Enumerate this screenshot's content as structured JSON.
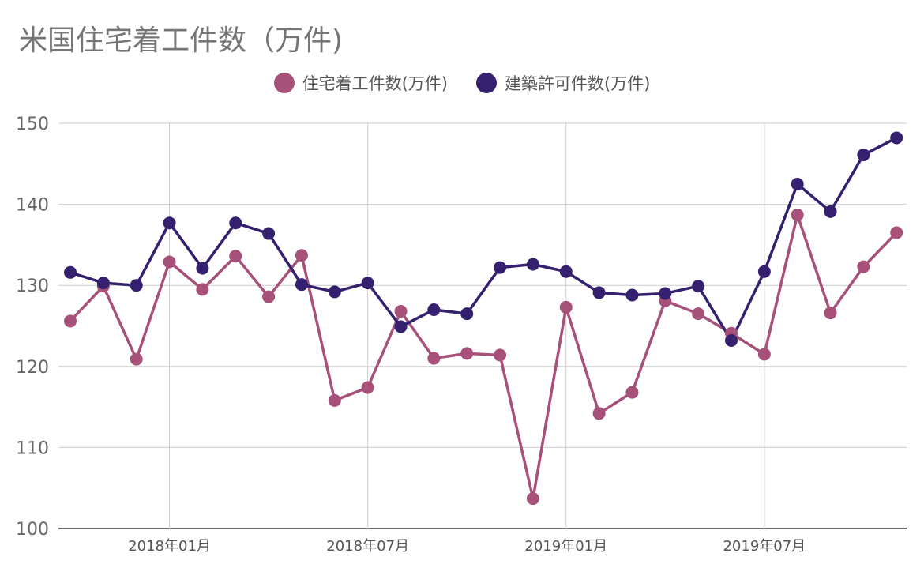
{
  "chart_data": {
    "type": "line",
    "title": "米国住宅着工件数（万件)",
    "xlabel": "",
    "ylabel": "",
    "ylim": [
      100,
      150
    ],
    "yticks": [
      100,
      110,
      120,
      130,
      140,
      150
    ],
    "x": [
      "2017-10",
      "2017-11",
      "2017-12",
      "2018-01",
      "2018-02",
      "2018-03",
      "2018-04",
      "2018-05",
      "2018-06",
      "2018-07",
      "2018-08",
      "2018-09",
      "2018-10",
      "2018-11",
      "2018-12",
      "2019-01",
      "2019-02",
      "2019-03",
      "2019-04",
      "2019-05",
      "2019-06",
      "2019-07",
      "2019-08",
      "2019-09",
      "2019-10",
      "2019-11"
    ],
    "xtick_labels": [
      {
        "x": "2018-01",
        "label": "2018年01月"
      },
      {
        "x": "2018-07",
        "label": "2018年07月"
      },
      {
        "x": "2019-01",
        "label": "2019年01月"
      },
      {
        "x": "2019-07",
        "label": "2019年07月"
      }
    ],
    "grid": true,
    "legend_position": "top",
    "series": [
      {
        "name": "住宅着工件数(万件)",
        "color": "#a6507a",
        "values": [
          125.6,
          129.9,
          120.9,
          132.9,
          129.5,
          133.6,
          128.6,
          133.7,
          115.8,
          117.4,
          126.8,
          121.0,
          121.6,
          121.4,
          103.7,
          127.3,
          114.2,
          116.8,
          128.1,
          126.5,
          124.1,
          121.5,
          138.7,
          126.6,
          132.3,
          136.5
        ]
      },
      {
        "name": "建築許可件数(万件)",
        "color": "#34206e",
        "values": [
          131.6,
          130.3,
          130.0,
          137.7,
          132.1,
          137.7,
          136.4,
          130.1,
          129.2,
          130.3,
          124.9,
          127.0,
          126.5,
          132.2,
          132.6,
          131.7,
          129.1,
          128.8,
          129.0,
          129.9,
          123.2,
          131.7,
          142.5,
          139.1,
          146.1,
          148.2
        ]
      }
    ]
  }
}
